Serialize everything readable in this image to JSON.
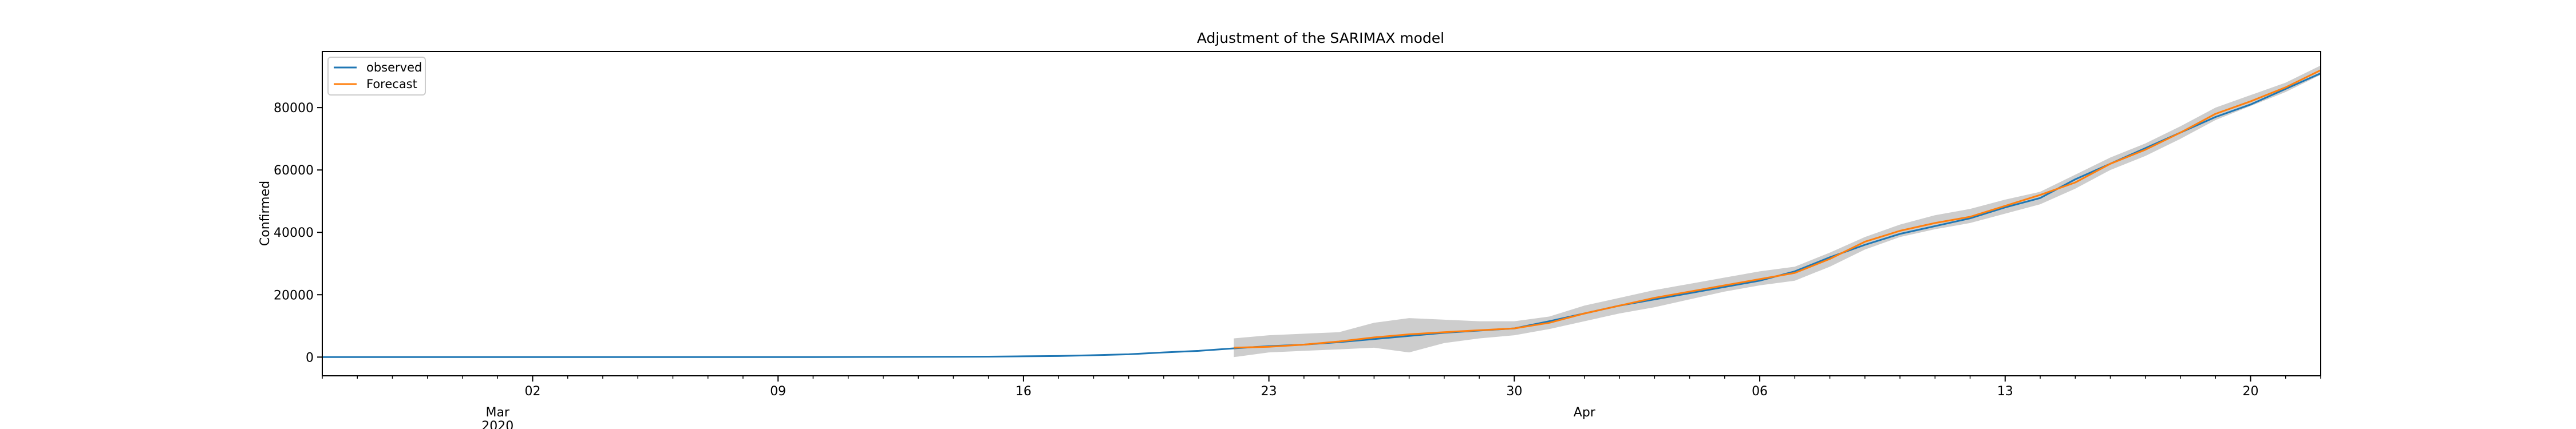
{
  "chart_data": {
    "type": "line",
    "title": "Adjustment of the SARIMAX model",
    "xlabel": "",
    "ylabel": "Confirmed",
    "x_start": "2020-02-25",
    "x_end": "2020-04-22",
    "ylim": [
      -6000,
      98000
    ],
    "y_ticks": [
      0,
      20000,
      40000,
      60000,
      80000
    ],
    "x_major_ticks": [
      {
        "date": "2020-03-02",
        "label": "02"
      },
      {
        "date": "2020-03-09",
        "label": "09"
      },
      {
        "date": "2020-03-16",
        "label": "16"
      },
      {
        "date": "2020-03-23",
        "label": "23"
      },
      {
        "date": "2020-03-30",
        "label": "30"
      },
      {
        "date": "2020-04-06",
        "label": "06"
      },
      {
        "date": "2020-04-13",
        "label": "13"
      },
      {
        "date": "2020-04-20",
        "label": "20"
      }
    ],
    "x_secondary_labels": [
      {
        "date": "2020-03-01",
        "text": "Mar\n2020"
      },
      {
        "date": "2020-04-01",
        "text": "Apr"
      }
    ],
    "legend": {
      "position": "upper-left",
      "entries": [
        "observed",
        "Forecast"
      ]
    },
    "grid": false,
    "series": [
      {
        "name": "observed",
        "color": "#1f77b4",
        "x": [
          "2020-02-25",
          "2020-02-26",
          "2020-02-27",
          "2020-02-28",
          "2020-02-29",
          "2020-03-01",
          "2020-03-02",
          "2020-03-03",
          "2020-03-04",
          "2020-03-05",
          "2020-03-06",
          "2020-03-07",
          "2020-03-08",
          "2020-03-09",
          "2020-03-10",
          "2020-03-11",
          "2020-03-12",
          "2020-03-13",
          "2020-03-14",
          "2020-03-15",
          "2020-03-16",
          "2020-03-17",
          "2020-03-18",
          "2020-03-19",
          "2020-03-20",
          "2020-03-21",
          "2020-03-22",
          "2020-03-23",
          "2020-03-24",
          "2020-03-25",
          "2020-03-26",
          "2020-03-27",
          "2020-03-28",
          "2020-03-29",
          "2020-03-30",
          "2020-03-31",
          "2020-04-01",
          "2020-04-02",
          "2020-04-03",
          "2020-04-04",
          "2020-04-05",
          "2020-04-06",
          "2020-04-07",
          "2020-04-08",
          "2020-04-09",
          "2020-04-10",
          "2020-04-11",
          "2020-04-12",
          "2020-04-13",
          "2020-04-14",
          "2020-04-15",
          "2020-04-16",
          "2020-04-17",
          "2020-04-18",
          "2020-04-19",
          "2020-04-20",
          "2020-04-21",
          "2020-04-22"
        ],
        "values": [
          0,
          0,
          0,
          0,
          0,
          0,
          0,
          0,
          0,
          0,
          0,
          0,
          0,
          10,
          20,
          30,
          50,
          70,
          100,
          150,
          250,
          350,
          600,
          900,
          1500,
          2000,
          2800,
          3500,
          4000,
          4800,
          5800,
          6800,
          7800,
          8500,
          9200,
          11500,
          14000,
          16500,
          18500,
          20500,
          22500,
          24500,
          27500,
          32000,
          36000,
          39500,
          42000,
          44500,
          48000,
          51000,
          57000,
          62000,
          67000,
          72000,
          77000,
          81000,
          86000,
          91000
        ]
      },
      {
        "name": "Forecast",
        "color": "#ff7f0e",
        "x": [
          "2020-03-22",
          "2020-03-23",
          "2020-03-24",
          "2020-03-25",
          "2020-03-26",
          "2020-03-27",
          "2020-03-28",
          "2020-03-29",
          "2020-03-30",
          "2020-03-31",
          "2020-04-01",
          "2020-04-02",
          "2020-04-03",
          "2020-04-04",
          "2020-04-05",
          "2020-04-06",
          "2020-04-07",
          "2020-04-08",
          "2020-04-09",
          "2020-04-10",
          "2020-04-11",
          "2020-04-12",
          "2020-04-13",
          "2020-04-14",
          "2020-04-15",
          "2020-04-16",
          "2020-04-17",
          "2020-04-18",
          "2020-04-19",
          "2020-04-20",
          "2020-04-21",
          "2020-04-22"
        ],
        "values": [
          3000,
          3300,
          4000,
          5000,
          6300,
          7300,
          8000,
          8600,
          9200,
          11000,
          14000,
          16500,
          19000,
          21000,
          23000,
          25000,
          27000,
          31500,
          37000,
          40500,
          43000,
          45000,
          48500,
          52000,
          56000,
          62000,
          66500,
          72000,
          78000,
          82000,
          86500,
          92000
        ],
        "ci_lower": [
          0,
          1500,
          2000,
          2500,
          3000,
          1500,
          4500,
          6000,
          7000,
          9000,
          11500,
          14000,
          16000,
          18500,
          21000,
          23000,
          24500,
          29000,
          34500,
          38500,
          41000,
          43000,
          46000,
          49000,
          54000,
          60000,
          64500,
          70000,
          76000,
          80500,
          85000,
          90500
        ],
        "ci_upper": [
          6000,
          7000,
          7500,
          8000,
          11000,
          12500,
          12000,
          11500,
          11500,
          13000,
          16500,
          19000,
          21500,
          23500,
          25500,
          27500,
          29000,
          33500,
          38500,
          42500,
          45500,
          47500,
          50500,
          53000,
          58500,
          64000,
          68500,
          74000,
          80000,
          84000,
          88000,
          93500
        ],
        "ci_color": "#bcbcbc"
      }
    ]
  }
}
